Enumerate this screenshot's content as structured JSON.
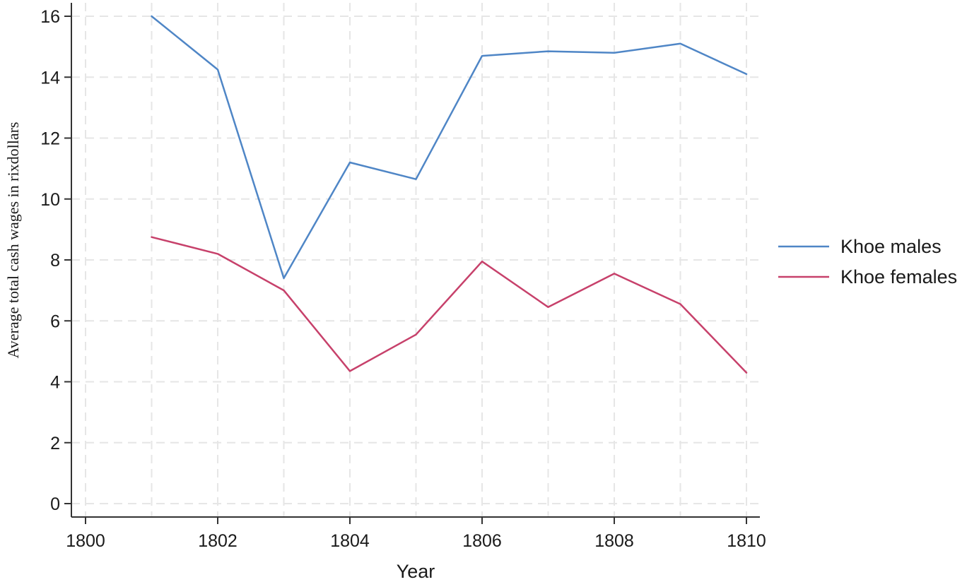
{
  "chart_data": {
    "type": "line",
    "title": "",
    "xlabel": "Year",
    "ylabel": "Average total cash wages in rixdollars",
    "xlim": [
      1800,
      1810
    ],
    "ylim": [
      0,
      16
    ],
    "x_ticks": [
      1800,
      1802,
      1804,
      1806,
      1808,
      1810
    ],
    "y_ticks": [
      0,
      2,
      4,
      6,
      8,
      10,
      12,
      14,
      16
    ],
    "grid": true,
    "legend_position": "right",
    "x": [
      1801,
      1802,
      1803,
      1804,
      1805,
      1806,
      1807,
      1808,
      1809,
      1810
    ],
    "series": [
      {
        "name": "Khoe males",
        "color": "#4f86c6",
        "values": [
          16.0,
          14.25,
          7.4,
          11.2,
          10.65,
          14.7,
          14.85,
          14.8,
          15.1,
          14.1
        ]
      },
      {
        "name": "Khoe females",
        "color": "#c7416b",
        "values": [
          8.75,
          8.2,
          7.0,
          4.35,
          5.55,
          7.95,
          6.45,
          7.55,
          6.55,
          4.3
        ]
      }
    ]
  }
}
